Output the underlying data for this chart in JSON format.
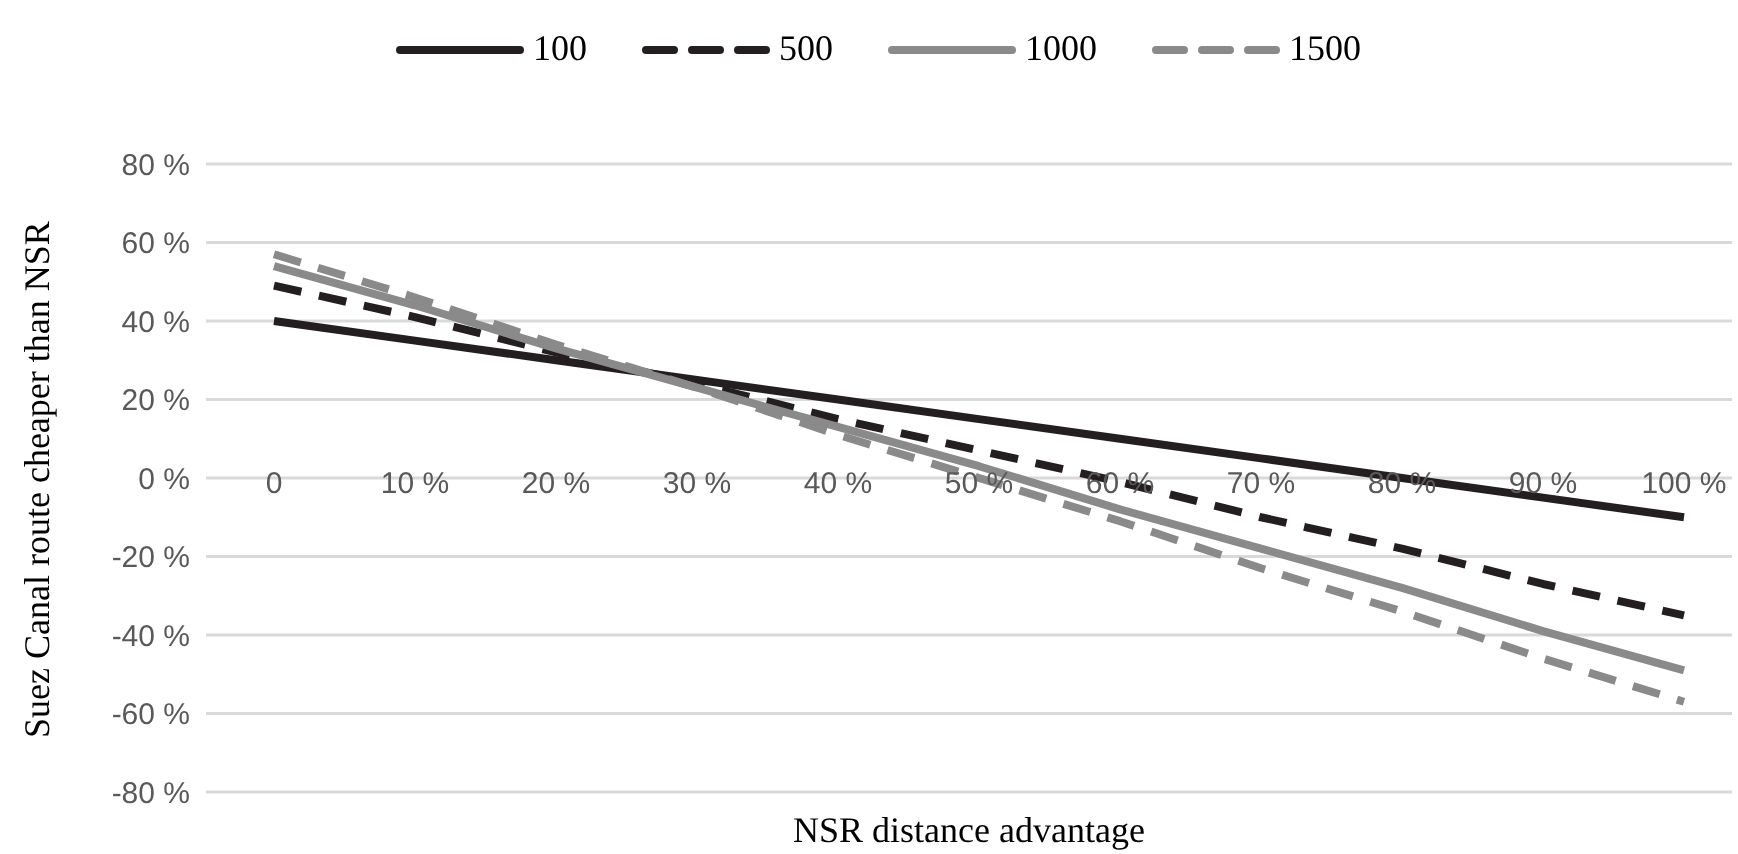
{
  "chart_data": {
    "type": "line",
    "xlabel": "NSR distance advantage",
    "ylabel": "Suez Canal route  cheaper than NSR",
    "categories": [
      "0",
      "10 %",
      "20 %",
      "30 %",
      "40 %",
      "50 %",
      "60 %",
      "70 %",
      "80 %",
      "90 %",
      "100 %"
    ],
    "series": [
      {
        "name": "100",
        "color": "#231f20",
        "line_style": "solid",
        "values": [
          40,
          35,
          30,
          25,
          20,
          15,
          10,
          5,
          0,
          -5,
          -10
        ]
      },
      {
        "name": "500",
        "color": "#231f20",
        "line_style": "dashed",
        "values": [
          49,
          41,
          32,
          24,
          15,
          7,
          -1,
          -10,
          -18,
          -27,
          -35
        ]
      },
      {
        "name": "1000",
        "color": "#8a8a8a",
        "line_style": "solid",
        "values": [
          54,
          44,
          33,
          23,
          13,
          3,
          -8,
          -18,
          -28,
          -39,
          -49
        ]
      },
      {
        "name": "1500",
        "color": "#8a8a8a",
        "line_style": "dashed",
        "values": [
          57,
          46,
          34,
          23,
          11,
          0,
          -11,
          -23,
          -34,
          -46,
          -57
        ]
      }
    ],
    "ylim": [
      -80,
      80
    ],
    "yticks": [
      {
        "value": -80,
        "label": "-80 %"
      },
      {
        "value": -60,
        "label": "-60 %"
      },
      {
        "value": -40,
        "label": "-40 %"
      },
      {
        "value": -20,
        "label": "-20 %"
      },
      {
        "value": 0,
        "label": "0 %"
      },
      {
        "value": 20,
        "label": "20 %"
      },
      {
        "value": 40,
        "label": "40 %"
      },
      {
        "value": 60,
        "label": "60 %"
      },
      {
        "value": 80,
        "label": "80 %"
      }
    ],
    "grid": "y",
    "legend": "top",
    "marker": "none"
  }
}
